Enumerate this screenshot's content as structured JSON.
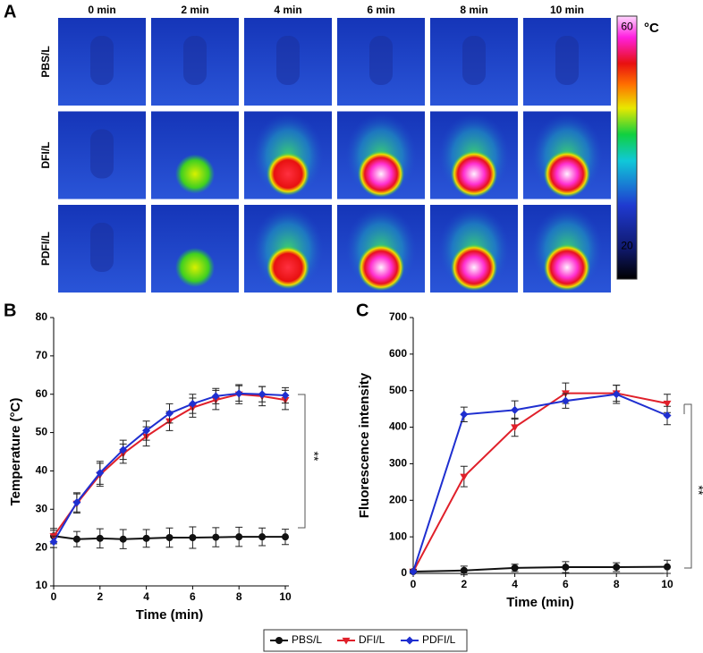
{
  "thermal_images": {
    "panel_label": "A",
    "columns": [
      "0 min",
      "2 min",
      "4 min",
      "6 min",
      "8 min",
      "10 min"
    ],
    "rows": [
      "PBS/L",
      "DFI/L",
      "PDFI/L"
    ],
    "colorbar": {
      "unit": "°C",
      "lim": [
        14,
        62
      ],
      "ticks": [
        20,
        60
      ]
    }
  },
  "chart_data": [
    {
      "type": "line",
      "panel_label": "B",
      "x_label": "Time (min)",
      "y_label": "Temperature (°C)",
      "x": [
        0,
        1,
        2,
        3,
        4,
        5,
        6,
        7,
        8,
        9,
        10
      ],
      "xlim": [
        0,
        10
      ],
      "xticks": [
        0,
        2,
        4,
        6,
        8,
        10
      ],
      "ylim": [
        10,
        80
      ],
      "yticks": [
        10,
        20,
        30,
        40,
        50,
        60,
        70,
        80
      ],
      "annotation": "**",
      "series": [
        {
          "name": "PBS/L",
          "color": "#111111",
          "marker": "circle",
          "values": [
            23,
            22.2,
            22.4,
            22.2,
            22.4,
            22.6,
            22.6,
            22.7,
            22.8,
            22.8,
            22.8
          ],
          "errors": [
            2,
            2,
            2.5,
            2.5,
            2.3,
            2.5,
            2.8,
            2.5,
            2.5,
            2.3,
            2
          ]
        },
        {
          "name": "DFI/L",
          "color": "#e0202a",
          "marker": "triangle-down",
          "values": [
            23,
            31.5,
            39,
            44.5,
            49,
            53,
            56.5,
            58.5,
            60,
            59.5,
            58.5
          ],
          "errors": [
            1.5,
            2.5,
            3,
            2.5,
            2.5,
            2.5,
            2.5,
            2.5,
            2.5,
            2.5,
            2.5
          ]
        },
        {
          "name": "PDFI/L",
          "color": "#1f2fd0",
          "marker": "diamond",
          "values": [
            21.5,
            31.8,
            39.5,
            45.5,
            50.5,
            55,
            57.5,
            59.5,
            60.2,
            60,
            59.7
          ],
          "errors": [
            1.5,
            2.5,
            3,
            2.5,
            2.5,
            2.5,
            2.5,
            2,
            2,
            2,
            2
          ]
        }
      ]
    },
    {
      "type": "line",
      "panel_label": "C",
      "x_label": "Time (min)",
      "y_label": "Fluorescence intensity",
      "x": [
        0,
        2,
        4,
        6,
        8,
        10
      ],
      "xlim": [
        0,
        10
      ],
      "xticks": [
        0,
        2,
        4,
        6,
        8,
        10
      ],
      "ylim": [
        0,
        700
      ],
      "yticks": [
        0,
        100,
        200,
        300,
        400,
        500,
        600,
        700
      ],
      "annotation": "**",
      "series": [
        {
          "color": "#111111",
          "marker": "circle",
          "values": [
            5,
            8,
            15,
            17,
            17,
            18
          ],
          "errors": [
            5,
            12,
            10,
            15,
            12,
            18
          ]
        },
        {
          "color": "#e0202a",
          "marker": "triangle-down",
          "values": [
            5,
            265,
            400,
            493,
            493,
            465
          ],
          "errors": [
            5,
            28,
            25,
            28,
            22,
            25
          ]
        },
        {
          "color": "#1f2fd0",
          "marker": "diamond",
          "values": [
            5,
            435,
            447,
            472,
            490,
            432
          ],
          "errors": [
            5,
            20,
            25,
            20,
            25,
            25
          ]
        }
      ]
    }
  ]
}
